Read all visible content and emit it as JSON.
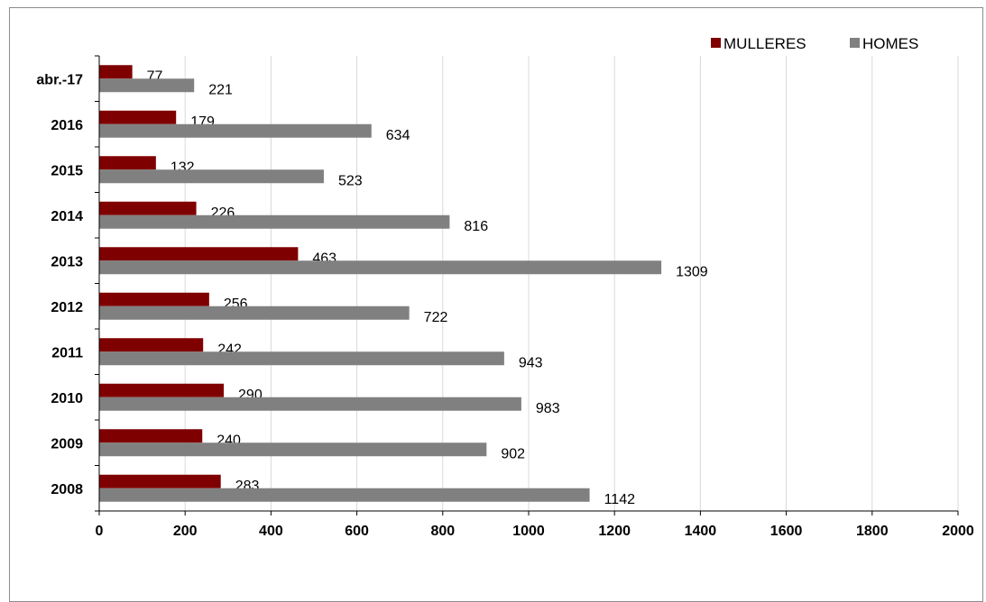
{
  "chart_data": {
    "type": "bar",
    "orientation": "horizontal",
    "categories": [
      "abr.-17",
      "2016",
      "2015",
      "2014",
      "2013",
      "2012",
      "2011",
      "2010",
      "2009",
      "2008"
    ],
    "series": [
      {
        "name": "MULLERES",
        "color": "#7f0000",
        "values": [
          77,
          179,
          132,
          226,
          463,
          256,
          242,
          290,
          240,
          283
        ]
      },
      {
        "name": "HOMES",
        "color": "#808080",
        "values": [
          221,
          634,
          523,
          816,
          1309,
          722,
          943,
          983,
          902,
          1142
        ]
      }
    ],
    "xlim": [
      0,
      2000
    ],
    "xticks": [
      "0",
      "200",
      "400",
      "600",
      "800",
      "1000",
      "1200",
      "1400",
      "1600",
      "1800",
      "2000"
    ],
    "gridlines": true,
    "legend_position": "top-right"
  }
}
